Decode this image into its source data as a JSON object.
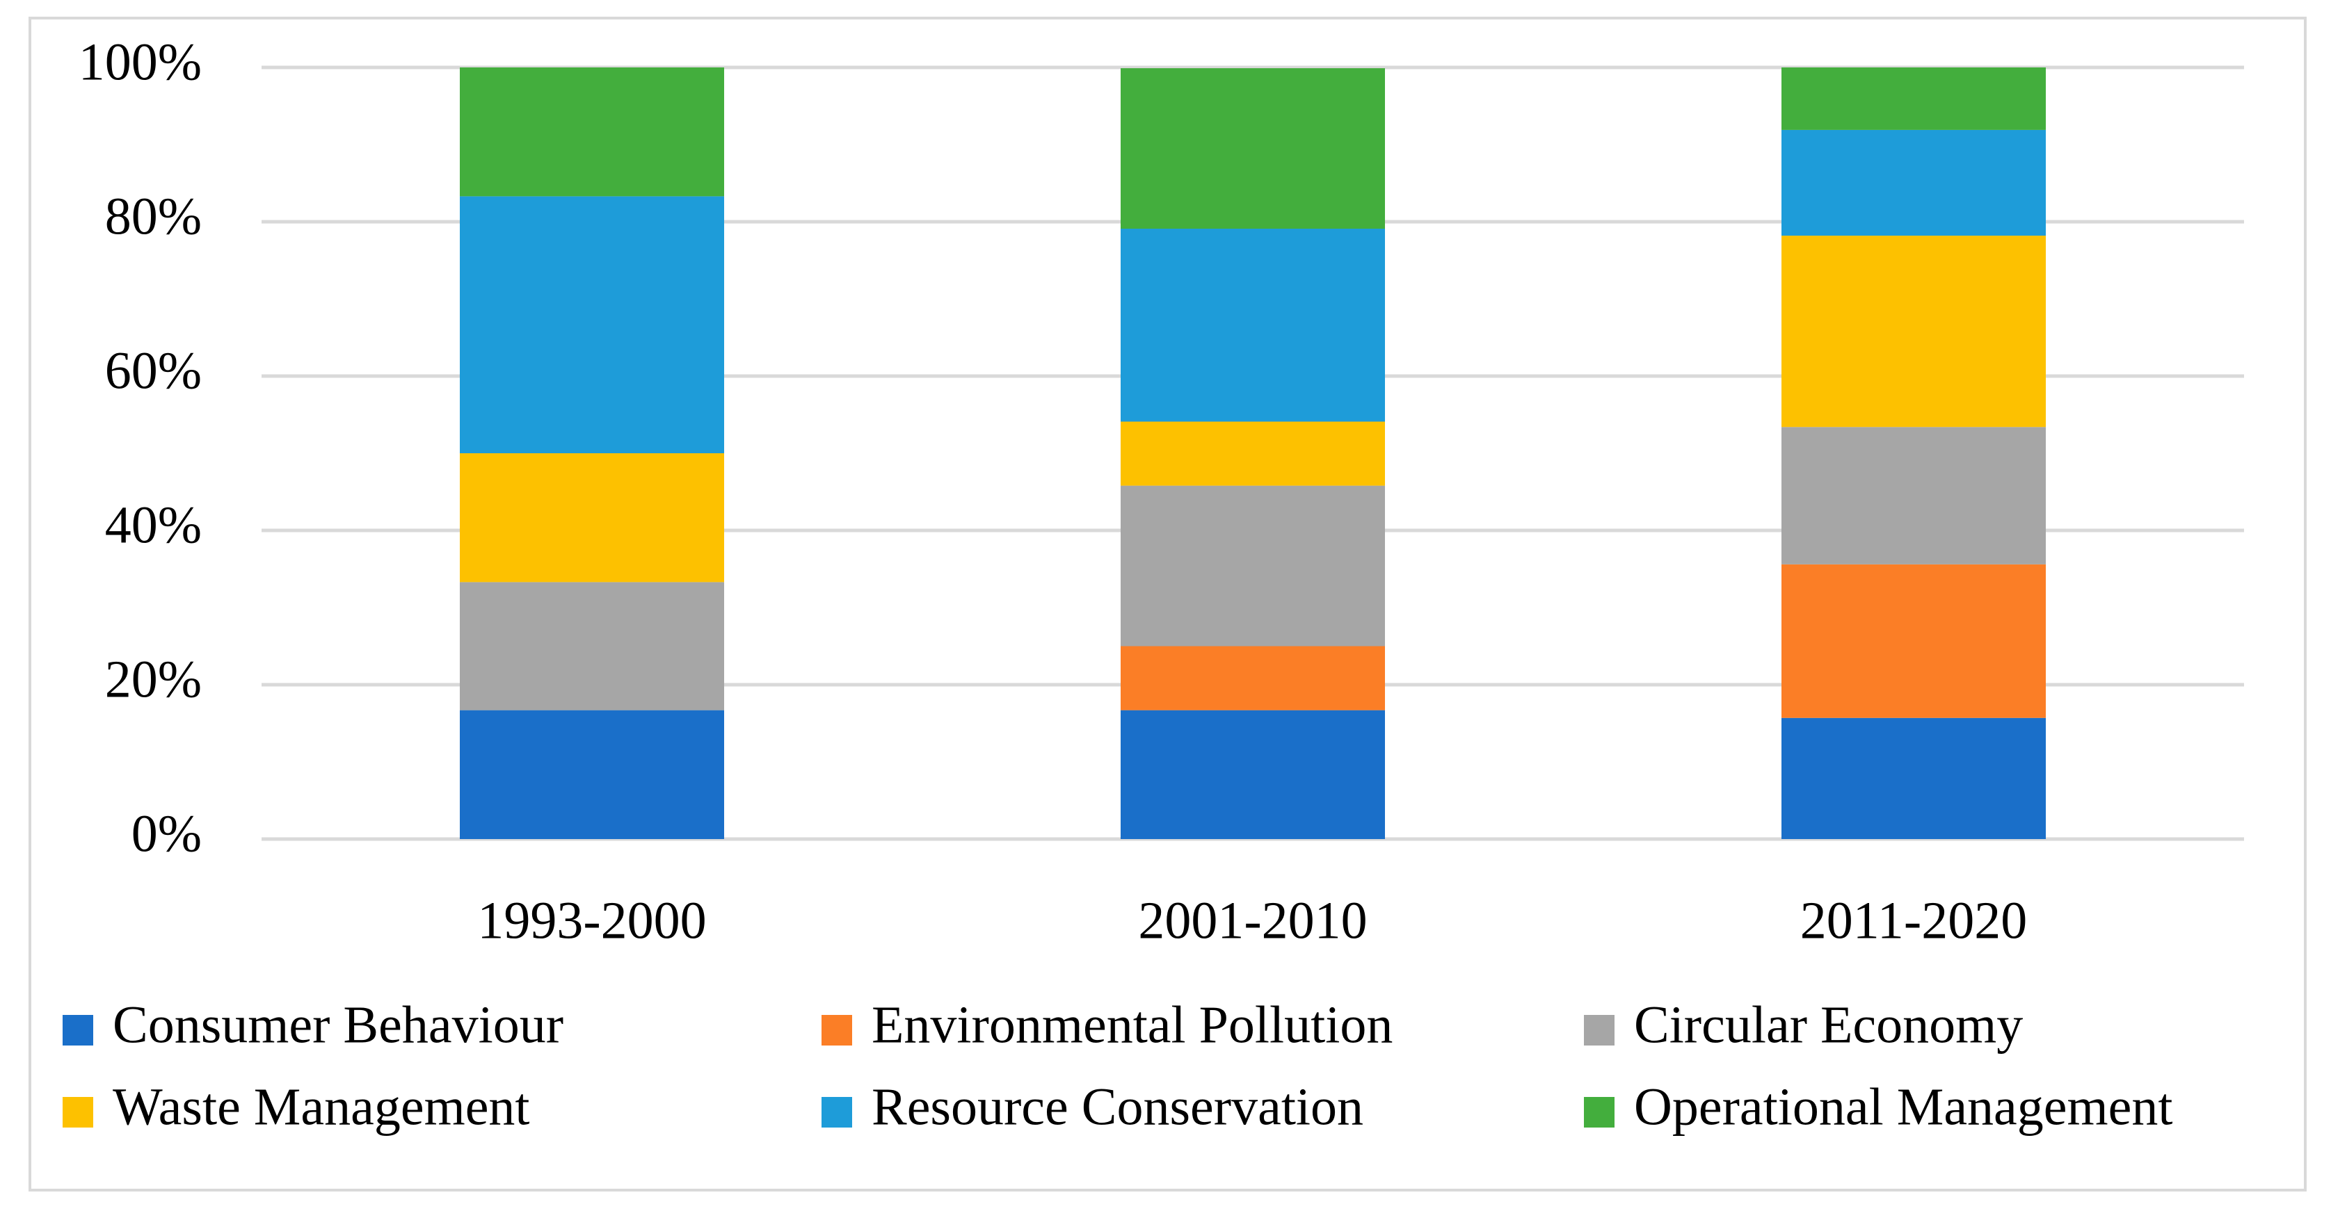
{
  "chart_data": {
    "type": "stacked_bar",
    "categories": [
      "1993-2000",
      "2001-2010",
      "2011-2020"
    ],
    "series": [
      {
        "name": "Consumer Behaviour",
        "color": "#1a6fc9",
        "values": [
          16.7,
          16.7,
          15.7
        ]
      },
      {
        "name": "Environmental Pollution",
        "color": "#fb7e26",
        "values": [
          0,
          8.3,
          19.9
        ]
      },
      {
        "name": "Circular Economy",
        "color": "#a6a6a6",
        "values": [
          16.6,
          20.8,
          17.8
        ]
      },
      {
        "name": "Waste Management",
        "color": "#fdc100",
        "values": [
          16.7,
          8.3,
          24.8
        ]
      },
      {
        "name": "Resource Conservation",
        "color": "#1e9cd9",
        "values": [
          33.3,
          25,
          13.7
        ]
      },
      {
        "name": "Operational Management",
        "color": "#43ae3d",
        "values": [
          16.7,
          20.8,
          8.1
        ]
      }
    ],
    "ylim": [
      0,
      100
    ],
    "yticks": [
      {
        "value": 0,
        "label": "0%"
      },
      {
        "value": 20,
        "label": "20%"
      },
      {
        "value": 40,
        "label": "40%"
      },
      {
        "value": 60,
        "label": "60%"
      },
      {
        "value": 80,
        "label": "80%"
      },
      {
        "value": 100,
        "label": "100%"
      }
    ],
    "grid": true,
    "legend": "bottom"
  }
}
